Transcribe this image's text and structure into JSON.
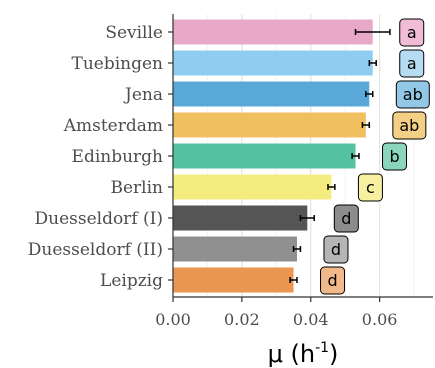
{
  "chart_data": {
    "type": "bar",
    "orientation": "horizontal",
    "categories": [
      "Seville",
      "Tuebingen",
      "Jena",
      "Amsterdam",
      "Edinburgh",
      "Berlin",
      "Duesseldorf (I)",
      "Duesseldorf (II)",
      "Leipzig"
    ],
    "values": [
      0.058,
      0.058,
      0.057,
      0.056,
      0.053,
      0.046,
      0.039,
      0.036,
      0.035
    ],
    "errors": [
      0.005,
      0.001,
      0.001,
      0.001,
      0.001,
      0.001,
      0.002,
      0.001,
      0.001
    ],
    "significance": [
      "a",
      "a",
      "ab",
      "ab",
      "b",
      "c",
      "d",
      "d",
      "d"
    ],
    "bar_colors": [
      "#e8a8c8",
      "#8fcdf0",
      "#5aa8d8",
      "#f0c060",
      "#55c3a0",
      "#f5ec80",
      "#555555",
      "#909090",
      "#ea9650"
    ],
    "label_colors": [
      "#f0bcd6",
      "#b5dcf3",
      "#92c7e6",
      "#f4cf86",
      "#8ad5bc",
      "#f7f0a0",
      "#8c8c8c",
      "#b5b5b5",
      "#f1b88a"
    ],
    "xlabel": "μ (h",
    "xlabel_sup": "-1",
    "xlabel_close": ")",
    "xlim": [
      0,
      0.0755
    ],
    "xticks": [
      0.0,
      0.02,
      0.04,
      0.06
    ],
    "xtick_labels": [
      "0.00",
      "0.02",
      "0.04",
      "0.06"
    ],
    "grid": true
  }
}
